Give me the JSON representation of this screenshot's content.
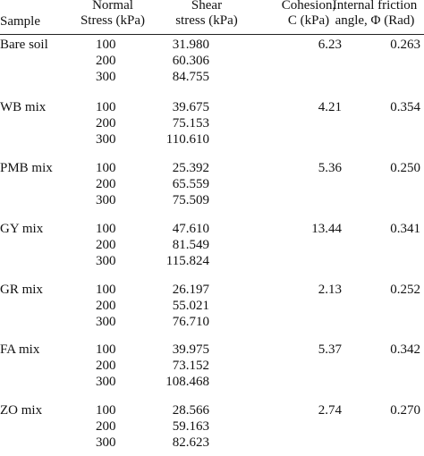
{
  "headers": {
    "sample": "Sample",
    "normal_line1": "Normal",
    "normal_line2": "Stress (kPa)",
    "shear_line1": "Shear",
    "shear_line2": "stress (kPa)",
    "cohesion_line1": "Cohesion,",
    "cohesion_line2": "C (kPa)",
    "phi_line1": "Internal friction",
    "phi_line2": "angle, Φ (Rad)"
  },
  "rows": [
    {
      "sample": "Bare soil",
      "normal": [
        "100",
        "200",
        "300"
      ],
      "shear": [
        "31.980",
        "60.306",
        "84.755"
      ],
      "cohesion": "6.23",
      "phi": "0.263"
    },
    {
      "sample": "WB mix",
      "normal": [
        "100",
        "200",
        "300"
      ],
      "shear": [
        "39.675",
        "75.153",
        "110.610"
      ],
      "cohesion": "4.21",
      "phi": "0.354"
    },
    {
      "sample": "PMB mix",
      "normal": [
        "100",
        "200",
        "300"
      ],
      "shear": [
        "25.392",
        "65.559",
        "75.509"
      ],
      "cohesion": "5.36",
      "phi": "0.250"
    },
    {
      "sample": "GY mix",
      "normal": [
        "100",
        "200",
        "300"
      ],
      "shear": [
        "47.610",
        "81.549",
        "115.824"
      ],
      "cohesion": "13.44",
      "phi": "0.341"
    },
    {
      "sample": "GR mix",
      "normal": [
        "100",
        "200",
        "300"
      ],
      "shear": [
        "26.197",
        "55.021",
        "76.710"
      ],
      "cohesion": "2.13",
      "phi": "0.252"
    },
    {
      "sample": "FA mix",
      "normal": [
        "100",
        "200",
        "300"
      ],
      "shear": [
        "39.975",
        "73.152",
        "108.468"
      ],
      "cohesion": "5.37",
      "phi": "0.342"
    },
    {
      "sample": "ZO mix",
      "normal": [
        "100",
        "200",
        "300"
      ],
      "shear": [
        "28.566",
        "59.163",
        "82.623"
      ],
      "cohesion": "2.74",
      "phi": "0.270"
    }
  ]
}
